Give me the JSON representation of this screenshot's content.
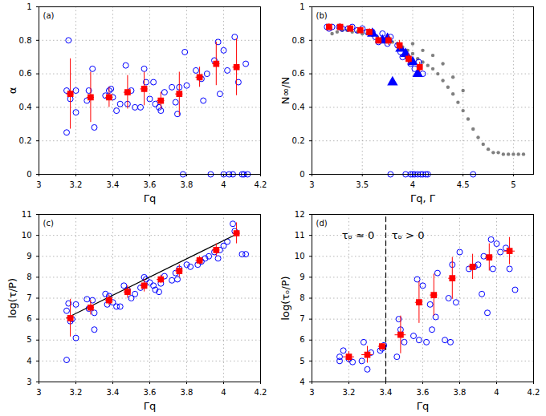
{
  "chart_data": [
    {
      "type": "scatter",
      "title": "(a)",
      "x_label": "Γq",
      "y_label": "α",
      "xlim": [
        3,
        4.2
      ],
      "xticks": [
        3,
        3.2,
        3.4,
        3.6,
        3.8,
        4,
        4.2
      ],
      "ylim": [
        0,
        1
      ],
      "yticks": [
        0,
        0.2,
        0.4,
        0.6,
        0.8,
        1
      ],
      "grid": true,
      "series": [
        {
          "color": "#0000ff",
          "marker": "open_circle",
          "x": [
            3.15,
            3.15,
            3.16,
            3.17,
            3.2,
            3.2,
            3.26,
            3.27,
            3.29,
            3.3,
            3.36,
            3.38,
            3.39,
            3.4,
            3.42,
            3.44,
            3.47,
            3.48,
            3.5,
            3.52,
            3.55,
            3.57,
            3.58,
            3.6,
            3.62,
            3.63,
            3.65,
            3.66,
            3.68,
            3.72,
            3.74,
            3.75,
            3.76,
            3.78,
            3.79,
            3.8,
            3.85,
            3.88,
            3.89,
            3.91,
            3.93,
            3.95,
            3.97,
            3.98,
            4.0,
            4.0,
            4.02,
            4.03,
            4.05,
            4.06,
            4.08,
            4.1,
            4.11,
            4.12,
            4.13
          ],
          "values": [
            0.25,
            0.5,
            0.8,
            0.45,
            0.37,
            0.5,
            0.44,
            0.5,
            0.63,
            0.28,
            0.47,
            0.5,
            0.51,
            0.46,
            0.38,
            0.42,
            0.65,
            0.42,
            0.5,
            0.4,
            0.4,
            0.63,
            0.55,
            0.45,
            0.55,
            0.42,
            0.4,
            0.38,
            0.49,
            0.52,
            0.43,
            0.36,
            0.52,
            0,
            0.73,
            0.53,
            0.62,
            0.57,
            0.44,
            0.6,
            0,
            0.68,
            0.79,
            0.48,
            0,
            0.74,
            0.62,
            0,
            0,
            0.82,
            0.55,
            0,
            0,
            0.66,
            0
          ]
        },
        {
          "color": "#ff0000",
          "marker": "square",
          "x": [
            3.17,
            3.28,
            3.38,
            3.48,
            3.57,
            3.66,
            3.76,
            3.87,
            3.96,
            4.07
          ],
          "values": [
            0.48,
            0.46,
            0.46,
            0.49,
            0.51,
            0.44,
            0.48,
            0.58,
            0.66,
            0.64
          ],
          "yerr": [
            0.21,
            0.15,
            0.06,
            0.1,
            0.1,
            0.05,
            0.13,
            0.06,
            0.13,
            0.17
          ],
          "xerr": [
            0.02,
            0.02,
            0.02,
            0.02,
            0.02,
            0.02,
            0.02,
            0.02,
            0.02,
            0.02
          ]
        }
      ]
    },
    {
      "type": "scatter",
      "title": "(b)",
      "x_label": "Γq, Γ",
      "y_label": "N∞/N",
      "xlim": [
        3,
        5.2
      ],
      "xticks": [
        3,
        3.5,
        4,
        4.5,
        5
      ],
      "ylim": [
        0,
        1
      ],
      "yticks": [
        0,
        0.2,
        0.4,
        0.6,
        0.8,
        1
      ],
      "grid": true,
      "series": [
        {
          "color": "#808080",
          "marker": "dot",
          "x": [
            3.2,
            3.25,
            3.3,
            3.35,
            3.4,
            3.45,
            3.5,
            3.55,
            3.6,
            3.65,
            3.7,
            3.75,
            3.8,
            3.85,
            3.9,
            3.95,
            4.0,
            4.05,
            4.1,
            4.15,
            4.2,
            4.25,
            4.3,
            4.35,
            4.4,
            4.45,
            4.5,
            4.55,
            4.6,
            4.65,
            4.7,
            4.75,
            4.8,
            4.85,
            4.9,
            4.95,
            5.0,
            5.05,
            5.1,
            4.2,
            4.3,
            4.4,
            4.5,
            4.0,
            4.1
          ],
          "values": [
            0.84,
            0.85,
            0.86,
            0.86,
            0.85,
            0.85,
            0.84,
            0.84,
            0.83,
            0.82,
            0.81,
            0.8,
            0.79,
            0.78,
            0.76,
            0.74,
            0.72,
            0.69,
            0.67,
            0.65,
            0.63,
            0.6,
            0.56,
            0.52,
            0.48,
            0.43,
            0.38,
            0.33,
            0.27,
            0.22,
            0.18,
            0.15,
            0.13,
            0.13,
            0.12,
            0.12,
            0.12,
            0.12,
            0.12,
            0.71,
            0.66,
            0.58,
            0.5,
            0.78,
            0.74
          ]
        },
        {
          "color": "#0000ff",
          "marker": "open_circle",
          "x": [
            3.15,
            3.17,
            3.2,
            3.27,
            3.3,
            3.36,
            3.4,
            3.45,
            3.5,
            3.55,
            3.6,
            3.63,
            3.66,
            3.7,
            3.75,
            3.78,
            3.85,
            3.88,
            3.9,
            3.95,
            3.98,
            4.02,
            4.06,
            4.1,
            3.78,
            3.93,
            3.98,
            4.0,
            4.02,
            4.05,
            4.08,
            4.1,
            4.13,
            4.15,
            4.6
          ],
          "values": [
            0.88,
            0.87,
            0.88,
            0.88,
            0.87,
            0.87,
            0.88,
            0.86,
            0.87,
            0.85,
            0.85,
            0.82,
            0.79,
            0.84,
            0.78,
            0.82,
            0.77,
            0.73,
            0.7,
            0.7,
            0.66,
            0.63,
            0.67,
            0.6,
            0,
            0,
            0,
            0,
            0,
            0,
            0,
            0,
            0,
            0,
            0
          ]
        },
        {
          "color": "#0000ff",
          "marker": "triangle",
          "x": [
            3.6,
            3.7,
            3.75,
            3.8,
            3.88,
            3.93,
            4.0,
            4.05
          ],
          "values": [
            0.84,
            0.8,
            0.81,
            0.55,
            0.75,
            0.72,
            0.67,
            0.6
          ]
        },
        {
          "color": "#ff0000",
          "marker": "square",
          "x": [
            3.17,
            3.28,
            3.38,
            3.48,
            3.57,
            3.66,
            3.76,
            3.87,
            3.96,
            4.07
          ],
          "values": [
            0.88,
            0.88,
            0.87,
            0.86,
            0.85,
            0.8,
            0.8,
            0.77,
            0.69,
            0.64
          ],
          "yerr": [
            0.02,
            0.02,
            0.02,
            0.02,
            0.02,
            0.02,
            0.03,
            0.03,
            0.03,
            0.03
          ],
          "xerr": [
            0.02,
            0.02,
            0.02,
            0.02,
            0.02,
            0.02,
            0.02,
            0.02,
            0.02,
            0.02
          ]
        }
      ]
    },
    {
      "type": "scatter",
      "title": "(c)",
      "x_label": "Γq",
      "y_label": "log(τ/P)",
      "xlim": [
        3,
        4.2
      ],
      "xticks": [
        3,
        3.2,
        3.4,
        3.6,
        3.8,
        4,
        4.2
      ],
      "ylim": [
        3,
        11
      ],
      "yticks": [
        3,
        4,
        5,
        6,
        7,
        8,
        9,
        10,
        11
      ],
      "grid": true,
      "series": [
        {
          "color": "#0000ff",
          "marker": "open_circle",
          "x": [
            3.15,
            3.15,
            3.16,
            3.17,
            3.18,
            3.2,
            3.2,
            3.26,
            3.27,
            3.29,
            3.3,
            3.3,
            3.36,
            3.37,
            3.38,
            3.4,
            3.42,
            3.44,
            3.46,
            3.48,
            3.5,
            3.52,
            3.55,
            3.57,
            3.58,
            3.6,
            3.62,
            3.63,
            3.65,
            3.66,
            3.68,
            3.72,
            3.74,
            3.75,
            3.76,
            3.8,
            3.82,
            3.86,
            3.88,
            3.9,
            3.92,
            3.95,
            3.97,
            3.98,
            4.0,
            4.02,
            4.05,
            4.06,
            4.1,
            4.12
          ],
          "values": [
            4.05,
            6.4,
            6.75,
            5.9,
            6.0,
            5.1,
            6.7,
            6.95,
            6.5,
            6.9,
            5.5,
            6.3,
            7.2,
            6.7,
            7.1,
            6.8,
            6.6,
            6.6,
            7.6,
            7.4,
            7.0,
            7.2,
            7.5,
            8.0,
            7.9,
            7.75,
            7.6,
            7.4,
            7.3,
            7.7,
            8.05,
            7.85,
            8.2,
            7.9,
            8.4,
            8.6,
            8.5,
            8.6,
            8.75,
            8.9,
            9.0,
            9.2,
            8.9,
            9.3,
            9.5,
            9.7,
            10.55,
            10.2,
            9.1,
            9.1
          ]
        },
        {
          "type": "line",
          "color": "#000000",
          "line_style": "solid",
          "x": [
            3.15,
            4.08
          ],
          "values": [
            6.05,
            10.1
          ]
        },
        {
          "color": "#ff0000",
          "marker": "square",
          "x": [
            3.17,
            3.28,
            3.38,
            3.48,
            3.57,
            3.66,
            3.76,
            3.87,
            3.96,
            4.07
          ],
          "values": [
            6.05,
            6.55,
            6.9,
            7.3,
            7.6,
            7.9,
            8.3,
            8.8,
            9.3,
            10.1
          ],
          "yerr": [
            0.9,
            0.35,
            0.25,
            0.3,
            0.3,
            0.2,
            0.3,
            0.2,
            0.3,
            0.5
          ],
          "xerr": [
            0.02,
            0.02,
            0.02,
            0.02,
            0.02,
            0.02,
            0.02,
            0.02,
            0.02,
            0.02
          ]
        }
      ]
    },
    {
      "type": "scatter",
      "title": "(d)",
      "x_label": "Γq",
      "y_label": "log(τₒ/P)",
      "xlim": [
        3,
        4.2
      ],
      "xticks": [
        3,
        3.2,
        3.4,
        3.6,
        3.8,
        4,
        4.2
      ],
      "ylim": [
        4,
        12
      ],
      "yticks": [
        4,
        5,
        6,
        7,
        8,
        9,
        10,
        11,
        12
      ],
      "grid": true,
      "annotations": [
        {
          "text": "τₒ ≈ 0",
          "x": 3.25,
          "y": 11
        },
        {
          "text": "τₒ > 0",
          "x": 3.52,
          "y": 11
        }
      ],
      "series": [
        {
          "type": "line",
          "color": "#000000",
          "line_style": "dashed",
          "x": [
            3.4,
            3.4
          ],
          "values": [
            4,
            12
          ]
        },
        {
          "color": "#0000ff",
          "marker": "open_circle",
          "x": [
            3.15,
            3.15,
            3.17,
            3.2,
            3.22,
            3.27,
            3.28,
            3.3,
            3.32,
            3.37,
            3.38,
            3.39,
            3.46,
            3.47,
            3.48,
            3.5,
            3.55,
            3.57,
            3.58,
            3.6,
            3.62,
            3.64,
            3.65,
            3.67,
            3.68,
            3.72,
            3.74,
            3.75,
            3.76,
            3.78,
            3.8,
            3.85,
            3.88,
            3.9,
            3.92,
            3.93,
            3.95,
            3.97,
            3.98,
            4.0,
            4.02,
            4.05,
            4.07,
            4.1
          ],
          "values": [
            5.2,
            5.0,
            5.5,
            5.1,
            4.95,
            5.0,
            5.9,
            4.6,
            5.4,
            5.5,
            5.6,
            5.75,
            5.2,
            7.0,
            6.5,
            5.9,
            6.2,
            8.9,
            6.0,
            8.6,
            5.9,
            7.7,
            6.5,
            7.1,
            9.2,
            6.0,
            8.0,
            5.9,
            9.6,
            7.8,
            10.2,
            9.4,
            9.5,
            9.6,
            8.2,
            10.0,
            7.3,
            10.8,
            9.4,
            10.6,
            10.2,
            10.4,
            9.4,
            8.4
          ]
        },
        {
          "color": "#ff0000",
          "marker": "square",
          "x": [
            3.2,
            3.3,
            3.38,
            3.48,
            3.58,
            3.66,
            3.76,
            3.87,
            3.96,
            4.07
          ],
          "values": [
            5.2,
            5.3,
            5.7,
            6.25,
            7.8,
            8.15,
            8.95,
            9.5,
            9.95,
            10.25
          ],
          "yerr": [
            0.25,
            0.4,
            0.1,
            0.9,
            1.0,
            1.0,
            1.0,
            0.6,
            0.65,
            0.65
          ],
          "xerr": [
            0.03,
            0.03,
            0.02,
            0.03,
            0.02,
            0.02,
            0.02,
            0.02,
            0.02,
            0.03
          ]
        }
      ]
    }
  ]
}
